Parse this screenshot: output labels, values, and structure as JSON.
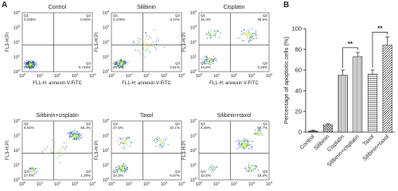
{
  "panel_a": {
    "label": "A",
    "x_axis_label": "FL1-H: annexin V-FITC",
    "y_axis_label": "FL3-H:PI",
    "axis_ticks": [
      {
        "base": "10",
        "exp": "0"
      },
      {
        "base": "10",
        "exp": "1"
      },
      {
        "base": "10",
        "exp": "2"
      },
      {
        "base": "10",
        "exp": "3"
      },
      {
        "base": "10",
        "exp": "4"
      }
    ],
    "quadrant_names": [
      "Q1",
      "Q2",
      "Q3",
      "Q4"
    ],
    "plots": [
      {
        "title": "Control",
        "quadrant_values": [
          "0.235%",
          "0.00%",
          "0.749%",
          "99.0%"
        ]
      },
      {
        "title": "Silibinin",
        "quadrant_values": [
          "0.475%",
          "3.72%",
          "2.61%",
          "93.2%"
        ]
      },
      {
        "title": "Cisplatin",
        "quadrant_values": [
          "16.3%",
          "35.5%",
          "3.29%",
          "44.8%"
        ]
      },
      {
        "title": "Silibinin+cisplatin",
        "quadrant_values": [
          "6.04%",
          "65.3%",
          "1.29%",
          "27.4%"
        ]
      },
      {
        "title": "Taxol",
        "quadrant_values": [
          "27.5%",
          "22.1%",
          "6.07%",
          "44.3%"
        ]
      },
      {
        "title": "Silibinin+taxol",
        "quadrant_values": [
          "4.48%",
          "69.7%",
          "15.3%",
          "10.5%"
        ]
      }
    ]
  },
  "chart_data": {
    "type": "bar",
    "panel_label": "B",
    "y_axis_label": "Percentage of apoptotic cells (%)",
    "categories": [
      "Control",
      "Silibinin",
      "Cisplatin",
      "Silibinin+cisplatin",
      "Taxol",
      "Silibinin+taxol"
    ],
    "values": [
      1,
      7,
      55,
      73,
      56,
      84
    ],
    "errors": [
      1,
      1,
      5,
      4,
      4,
      8
    ],
    "fill_patterns": [
      "solid",
      "crosshatch",
      "vertical",
      "vertical",
      "horizontal",
      "diagonal"
    ],
    "color": "#333333",
    "ylim": [
      0,
      100
    ],
    "yticks": [
      0,
      20,
      40,
      60,
      80,
      100
    ],
    "significance": [
      {
        "label": "**",
        "between": [
          2,
          3
        ]
      },
      {
        "label": "**",
        "between": [
          4,
          5
        ]
      }
    ]
  }
}
